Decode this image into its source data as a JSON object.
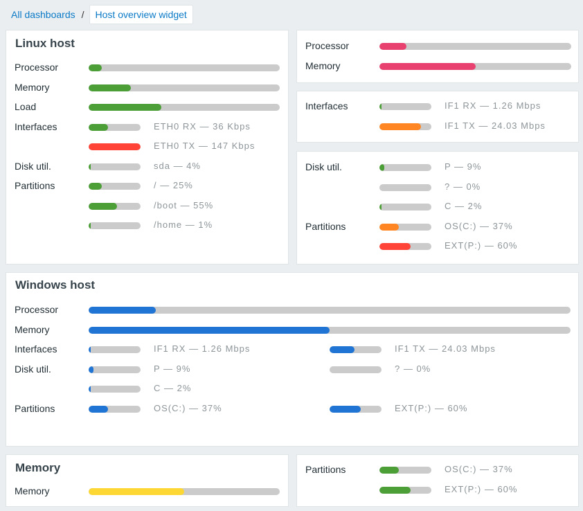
{
  "breadcrumb": {
    "parent": "All dashboards",
    "separator": "/",
    "current": "Host overview widget"
  },
  "colors": {
    "green": "#4c9e37",
    "red": "#ff4336",
    "orange": "#ff8623",
    "pink": "#e8416f",
    "blue": "#1f74d4",
    "yellow": "#fdd835",
    "track": "#cbcbcb"
  },
  "panels": [
    {
      "id": "linux",
      "title": "Linux host",
      "rows": [
        {
          "label": "Processor",
          "items": [
            {
              "value": 7,
              "color": "green"
            }
          ]
        },
        {
          "label": "Memory",
          "items": [
            {
              "value": 22,
              "color": "green"
            }
          ]
        },
        {
          "label": "Load",
          "items": [
            {
              "value": 38,
              "color": "green"
            }
          ]
        },
        {
          "label": "Interfaces",
          "items": [
            {
              "value": 37,
              "color": "green",
              "text": "ETH0 RX — 36 Kbps"
            }
          ]
        },
        {
          "label": "",
          "items": [
            {
              "value": 100,
              "color": "red",
              "text": "ETH0 TX — 147 Kbps"
            }
          ]
        },
        {
          "label": "Disk util.",
          "items": [
            {
              "value": 4,
              "color": "green",
              "text": "sda — 4%"
            }
          ]
        },
        {
          "label": "Partitions",
          "items": [
            {
              "value": 25,
              "color": "green",
              "text": "/ — 25%"
            }
          ]
        },
        {
          "label": "",
          "items": [
            {
              "value": 55,
              "color": "green",
              "text": "/boot — 55%"
            }
          ]
        },
        {
          "label": "",
          "items": [
            {
              "value": 1,
              "color": "green",
              "text": "/home — 1%"
            }
          ]
        }
      ]
    },
    {
      "id": "cpu-mem",
      "rows": [
        {
          "label": "Processor",
          "items": [
            {
              "value": 14,
              "color": "pink"
            }
          ]
        },
        {
          "label": "Memory",
          "items": [
            {
              "value": 50,
              "color": "pink"
            }
          ]
        }
      ]
    },
    {
      "id": "ifaces",
      "rows": [
        {
          "label": "Interfaces",
          "items": [
            {
              "value": 3,
              "color": "green",
              "text": "IF1 RX — 1.26 Mbps"
            }
          ]
        },
        {
          "label": "",
          "items": [
            {
              "value": 80,
              "color": "orange",
              "text": "IF1 TX — 24.03 Mbps"
            }
          ]
        }
      ]
    },
    {
      "id": "disks",
      "rows": [
        {
          "label": "Disk util.",
          "items": [
            {
              "value": 9,
              "color": "green",
              "text": "P — 9%"
            }
          ]
        },
        {
          "label": "",
          "items": [
            {
              "value": 0,
              "color": "green",
              "text": "? — 0%"
            }
          ]
        },
        {
          "label": "",
          "items": [
            {
              "value": 2,
              "color": "green",
              "text": "C — 2%"
            }
          ]
        },
        {
          "label": "Partitions",
          "items": [
            {
              "value": 37,
              "color": "orange",
              "text": "OS(C:) — 37%"
            }
          ]
        },
        {
          "label": "",
          "items": [
            {
              "value": 60,
              "color": "red",
              "text": "EXT(P:) — 60%"
            }
          ]
        }
      ]
    },
    {
      "id": "windows",
      "title": "Windows host",
      "rows": [
        {
          "label": "Processor",
          "items": [
            {
              "value": 14,
              "color": "blue"
            }
          ]
        },
        {
          "label": "Memory",
          "items": [
            {
              "value": 50,
              "color": "blue"
            }
          ]
        },
        {
          "label": "Interfaces",
          "items": [
            {
              "value": 2,
              "color": "blue",
              "text": "IF1 RX — 1.26 Mbps"
            },
            {
              "value": 48,
              "color": "blue",
              "text": "IF1 TX — 24.03 Mbps"
            }
          ]
        },
        {
          "label": "Disk util.",
          "items": [
            {
              "value": 9,
              "color": "blue",
              "text": "P — 9%"
            },
            {
              "value": 0,
              "color": "blue",
              "text": "? — 0%"
            }
          ]
        },
        {
          "label": "",
          "items": [
            {
              "value": 2,
              "color": "blue",
              "text": "C — 2%"
            }
          ]
        },
        {
          "label": "Partitions",
          "items": [
            {
              "value": 37,
              "color": "blue",
              "text": "OS(C:) — 37%"
            },
            {
              "value": 60,
              "color": "blue",
              "text": "EXT(P:) — 60%"
            }
          ]
        }
      ]
    },
    {
      "id": "memory",
      "title": "Memory",
      "rows": [
        {
          "label": "Memory",
          "items": [
            {
              "value": 50,
              "color": "yellow"
            }
          ]
        }
      ]
    },
    {
      "id": "partitions",
      "rows": [
        {
          "label": "Partitions",
          "items": [
            {
              "value": 37,
              "color": "green",
              "text": "OS(C:) — 37%"
            }
          ]
        },
        {
          "label": "",
          "items": [
            {
              "value": 60,
              "color": "green",
              "text": "EXT(P:) — 60%"
            }
          ]
        }
      ]
    }
  ]
}
